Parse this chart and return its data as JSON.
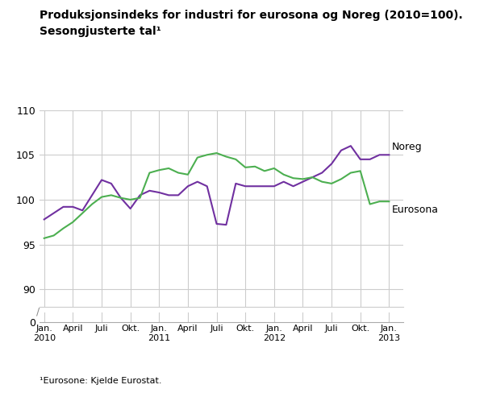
{
  "title_line1": "Produksjonsindeks for industri for eurosona og Noreg (2010=100).",
  "title_line2": "Sesongjusterte tal¹",
  "footnote": "¹Eurosone: Kjelde Eurostat.",
  "background_color": "#ffffff",
  "grid_color": "#cccccc",
  "noreg_color": "#7030A0",
  "eurosona_color": "#4CAF50",
  "noreg_label": "Noreg",
  "eurosona_label": "Eurosona",
  "x_tick_labels": [
    "Jan.\n2010",
    "April",
    "Juli",
    "Okt.",
    "Jan.\n2011",
    "April",
    "Juli",
    "Okt.",
    "Jan.\n2012",
    "April",
    "Juli",
    "Okt.",
    "Jan.\n2013"
  ],
  "x_tick_positions": [
    0,
    3,
    6,
    9,
    12,
    15,
    18,
    21,
    24,
    27,
    30,
    33,
    36
  ],
  "noreg": [
    97.8,
    98.5,
    99.2,
    99.2,
    98.8,
    100.5,
    102.2,
    101.8,
    100.2,
    99.0,
    100.5,
    101.0,
    100.8,
    100.5,
    100.5,
    101.5,
    102.0,
    101.5,
    97.3,
    97.2,
    101.8,
    101.5,
    101.5,
    101.5,
    101.5,
    102.0,
    101.5,
    102.0,
    102.5,
    103.0,
    104.0,
    105.5,
    106.0,
    104.5,
    104.5,
    105.0,
    105.0
  ],
  "eurosona": [
    95.7,
    96.0,
    96.8,
    97.5,
    98.5,
    99.5,
    100.3,
    100.5,
    100.2,
    100.0,
    100.2,
    103.0,
    103.3,
    103.5,
    103.0,
    102.8,
    104.7,
    105.0,
    105.2,
    104.8,
    104.5,
    103.6,
    103.7,
    103.2,
    103.5,
    102.8,
    102.4,
    102.3,
    102.5,
    102.0,
    101.8,
    102.3,
    103.0,
    103.2,
    99.5,
    99.8,
    99.8
  ]
}
